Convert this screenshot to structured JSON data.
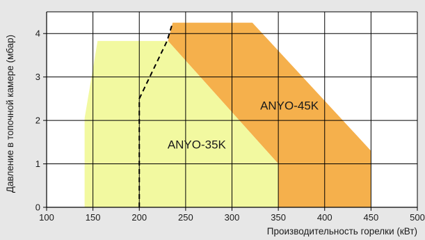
{
  "chart_data": {
    "type": "area",
    "xlabel": "Производительность горелки (кВт)",
    "ylabel": "Давление в топочной камере (мбар)",
    "xlim": [
      100,
      500
    ],
    "ylim": [
      0,
      4.5
    ],
    "x_ticks": [
      100,
      150,
      200,
      250,
      300,
      350,
      400,
      450,
      500
    ],
    "y_ticks": [
      0,
      1,
      2,
      3,
      4
    ],
    "grid": true,
    "colors": {
      "background": "#e7e7e7",
      "plot_background": "#ffffff",
      "grid": "#000000"
    },
    "series": [
      {
        "name": "ANYO-45K",
        "color": "#f5b04c",
        "label_at": [
          362,
          2.25
        ],
        "polygon": [
          [
            231,
            3.83
          ],
          [
            236,
            4.25
          ],
          [
            322,
            4.25
          ],
          [
            450,
            1.3
          ],
          [
            450,
            0
          ],
          [
            350,
            0
          ],
          [
            350,
            1.0
          ],
          [
            231,
            3.83
          ]
        ]
      },
      {
        "name": "ANYO-35K",
        "color": "#f2f9a0",
        "label_at": [
          262,
          1.35
        ],
        "polygon": [
          [
            141,
            0
          ],
          [
            141,
            2.05
          ],
          [
            155,
            3.83
          ],
          [
            231,
            3.83
          ],
          [
            350,
            1.0
          ],
          [
            350,
            0
          ]
        ]
      }
    ],
    "boundary_line": {
      "style": "dashed",
      "color": "#000000",
      "points": [
        [
          200,
          0
        ],
        [
          200,
          2.5
        ],
        [
          230,
          3.83
        ],
        [
          236,
          4.25
        ]
      ]
    }
  }
}
